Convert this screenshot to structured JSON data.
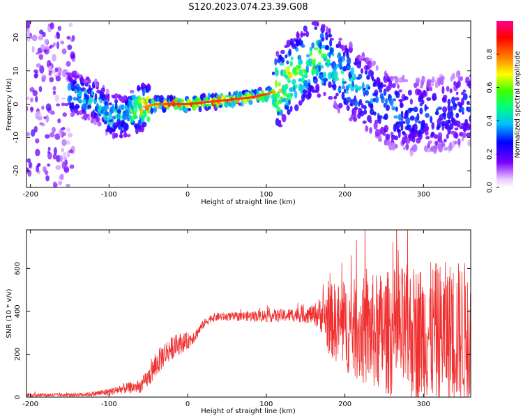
{
  "figure_title": "S120.2023.074.23.39.G08",
  "chart_data": [
    {
      "type": "heatmap",
      "xlabel": "Height of straight line (km)",
      "ylabel": "Frequency (Hz)",
      "xlim": [
        -205,
        360
      ],
      "ylim": [
        -25,
        25
      ],
      "x_ticks": [
        -200,
        -100,
        0,
        100,
        200,
        300
      ],
      "y_ticks": [
        -20,
        -10,
        0,
        10,
        20
      ],
      "colorbar": {
        "label": "Normalized spectral amplitude",
        "range": [
          0.0,
          1.0
        ],
        "ticks": [
          0.0,
          0.2,
          0.4,
          0.6,
          0.8
        ]
      },
      "ridge": {
        "x": [
          -140,
          -120,
          -100,
          -80,
          -60,
          -40,
          -20,
          0,
          20,
          40,
          60,
          80,
          100,
          115,
          130,
          150,
          165,
          180,
          200,
          220,
          240,
          260,
          280,
          300,
          320,
          340,
          358
        ],
        "frequency": [
          3,
          1,
          -3,
          -4,
          -1,
          0,
          0,
          0,
          0.5,
          1,
          1.5,
          2,
          3,
          4,
          8,
          12,
          14,
          12,
          8,
          4,
          1,
          -2,
          -4,
          -3,
          -3,
          -2,
          -1
        ],
        "peak_amplitude": [
          0.4,
          0.45,
          0.45,
          0.45,
          0.75,
          0.8,
          0.85,
          0.85,
          0.85,
          0.85,
          0.85,
          0.85,
          0.85,
          0.7,
          0.65,
          0.6,
          0.55,
          0.5,
          0.45,
          0.4,
          0.35,
          0.35,
          0.3,
          0.3,
          0.3,
          0.3,
          0.3
        ]
      }
    },
    {
      "type": "line",
      "xlabel": "Height of straight line (km)",
      "ylabel": "SNR (10 * v/v)",
      "xlim": [
        -205,
        360
      ],
      "ylim": [
        0,
        780
      ],
      "x_ticks": [
        -200,
        -100,
        0,
        100,
        200,
        300
      ],
      "y_ticks": [
        0,
        200,
        400,
        600
      ],
      "series": [
        {
          "color": "#f03030",
          "x_envelope": [
            -205,
            -150,
            -120,
            -100,
            -80,
            -60,
            -50,
            -40,
            -30,
            -20,
            -10,
            0,
            10,
            20,
            30,
            40,
            60,
            80,
            100,
            120,
            140,
            160,
            170,
            180,
            200,
            220,
            240,
            260,
            280,
            300,
            320,
            340,
            358
          ],
          "y_mean": [
            10,
            10,
            15,
            25,
            40,
            50,
            90,
            150,
            200,
            230,
            250,
            260,
            290,
            340,
            370,
            375,
            375,
            378,
            380,
            380,
            385,
            385,
            390,
            360,
            330,
            310,
            300,
            300,
            300,
            300,
            300,
            300,
            300
          ],
          "y_noise": [
            8,
            8,
            12,
            18,
            25,
            30,
            45,
            60,
            60,
            55,
            50,
            40,
            30,
            20,
            20,
            20,
            20,
            25,
            30,
            30,
            35,
            45,
            90,
            170,
            210,
            250,
            280,
            300,
            320,
            330,
            330,
            340,
            340
          ]
        }
      ]
    }
  ]
}
